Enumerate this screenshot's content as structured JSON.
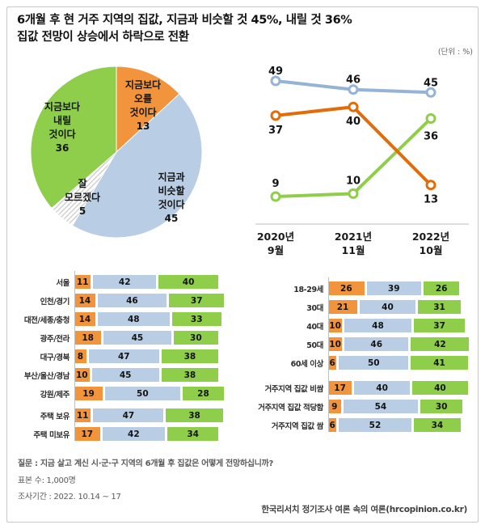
{
  "header": {
    "title_line1": "6개월 후 현 거주 지역의 집값, 지금과 비슷할 것 45%, 내릴 것 36%",
    "title_line2": "집값 전망이 상승에서 하락으로 전환",
    "unit_label": "(단위 : %)"
  },
  "colors": {
    "rise_orange": "#F2943C",
    "line_orange": "#E36C09",
    "similar_blue": "#B9CDE5",
    "line_blue": "#95B3D7",
    "fall_green": "#8FCE4A",
    "hatch_line_gray": "#cfcfcf",
    "axis_gray": "#BFBFBF"
  },
  "chart_data": [
    {
      "id": "pie-forecast",
      "type": "pie",
      "start_angle_deg": 0,
      "direction": "clockwise",
      "slices": [
        {
          "name": "rise",
          "label_lines": [
            "지금보다",
            "오를",
            "것이다"
          ],
          "value": 13,
          "color": "rise_orange"
        },
        {
          "name": "similar",
          "label_lines": [
            "지금과",
            "비슷할",
            "것이다"
          ],
          "value": 45,
          "color": "similar_blue"
        },
        {
          "name": "unsure",
          "label_lines": [
            "잘",
            "모르겠다"
          ],
          "value": 5,
          "color": "hatch_pattern"
        },
        {
          "name": "fall",
          "label_lines": [
            "지금보다",
            "내릴",
            "것이다"
          ],
          "value": 36,
          "color": "fall_green"
        }
      ]
    },
    {
      "id": "line-trend",
      "type": "line",
      "unit": "%",
      "x_labels": [
        [
          "2020년",
          "9월"
        ],
        [
          "2021년",
          "11월"
        ],
        [
          "2022년",
          "10월"
        ]
      ],
      "series": [
        {
          "name": "지금과 비슷할 것이다",
          "values": [
            49,
            46,
            45
          ],
          "color": "line_blue"
        },
        {
          "name": "지금보다 오를 것이다",
          "values": [
            37,
            40,
            13
          ],
          "color": "line_orange"
        },
        {
          "name": "지금보다 내릴 것이다",
          "values": [
            9,
            10,
            36
          ],
          "color": "fall_green"
        }
      ]
    },
    {
      "id": "bars-regions",
      "type": "bar",
      "orientation": "horizontal",
      "stacked": true,
      "series_names": [
        "오를 것이다",
        "비슷할 것이다",
        "내릴 것이다"
      ],
      "series_colors": [
        "rise_orange",
        "similar_blue",
        "fall_green"
      ],
      "groups": [
        {
          "rows": [
            {
              "label": "서울",
              "values": [
                11,
                42,
                40
              ]
            },
            {
              "label": "인천/경기",
              "values": [
                14,
                46,
                37
              ]
            },
            {
              "label": "대전/세종/충청",
              "values": [
                14,
                48,
                33
              ]
            },
            {
              "label": "광주/전라",
              "values": [
                18,
                45,
                30
              ]
            },
            {
              "label": "대구/경북",
              "values": [
                8,
                47,
                38
              ]
            },
            {
              "label": "부산/울산/경남",
              "values": [
                10,
                45,
                38
              ]
            },
            {
              "label": "강원/제주",
              "values": [
                19,
                50,
                28
              ]
            }
          ]
        },
        {
          "rows": [
            {
              "label": "주택 보유",
              "values": [
                11,
                47,
                38
              ]
            },
            {
              "label": "주택 미보유",
              "values": [
                17,
                42,
                34
              ]
            }
          ]
        }
      ]
    },
    {
      "id": "bars-demographics",
      "type": "bar",
      "orientation": "horizontal",
      "stacked": true,
      "series_names": [
        "오를 것이다",
        "비슷할 것이다",
        "내릴 것이다"
      ],
      "series_colors": [
        "rise_orange",
        "similar_blue",
        "fall_green"
      ],
      "groups": [
        {
          "rows": [
            {
              "label": "18-29세",
              "values": [
                26,
                39,
                26
              ]
            },
            {
              "label": "30대",
              "values": [
                21,
                40,
                31
              ]
            },
            {
              "label": "40대",
              "values": [
                10,
                48,
                37
              ]
            },
            {
              "label": "50대",
              "values": [
                10,
                46,
                42
              ]
            },
            {
              "label": "60세 이상",
              "values": [
                6,
                50,
                41
              ]
            }
          ]
        },
        {
          "rows": [
            {
              "label": "거주지역 집값 비쌈",
              "values": [
                17,
                40,
                40
              ]
            },
            {
              "label": "거주지역 집값 적당함",
              "values": [
                9,
                54,
                30
              ]
            },
            {
              "label": "거주지역 집값 쌈",
              "values": [
                6,
                52,
                34
              ]
            }
          ]
        }
      ]
    }
  ],
  "footer": {
    "question": "질문 : 지금 살고 계신 시·군·구 지역의 6개월 후 집값은 어떻게 전망하십니까?",
    "sample": "표본 수: 1,000명",
    "period": "조사기간 : 2022. 10.14 ~ 17",
    "source": "한국리서치 정기조사 여론 속의 여론(hrcopinion.co.kr)"
  }
}
